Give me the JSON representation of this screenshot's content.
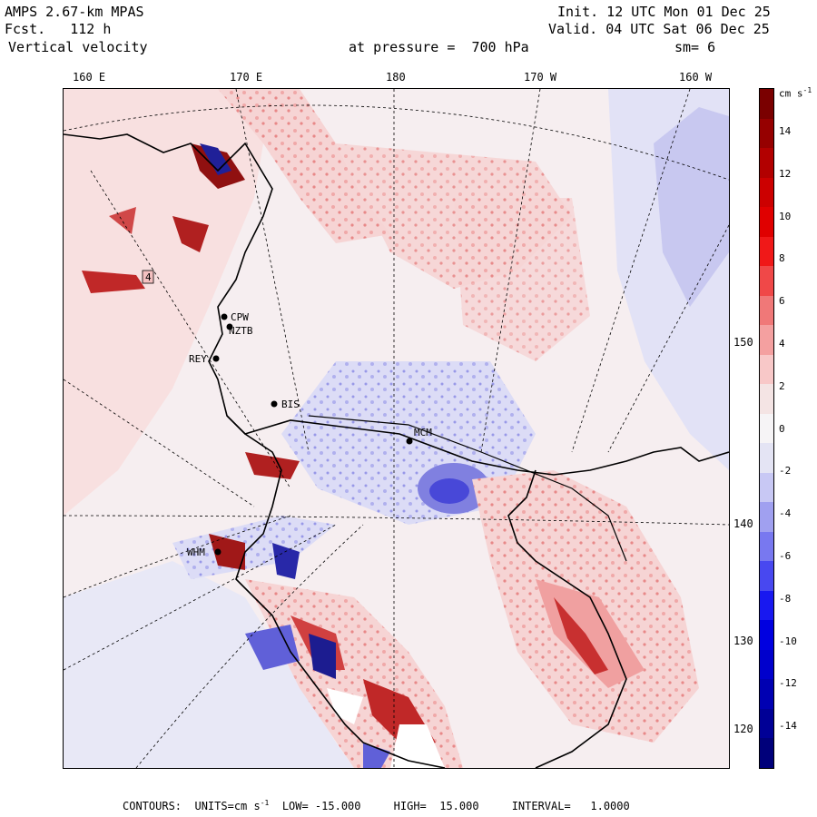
{
  "header": {
    "model": "AMPS 2.67-km MPAS",
    "forecast": "Fcst.   112 h",
    "field": "Vertical velocity",
    "init": "Init. 12 UTC Mon 01 Dec 25",
    "valid": "Valid. 04 UTC Sat 06 Dec 25",
    "pressure": "at pressure =  700 hPa",
    "smoothing": "sm= 6"
  },
  "map": {
    "lon_labels": [
      "160 E",
      "170 E",
      "180",
      "170 W",
      "160 W"
    ],
    "lat_labels": [
      "150 W",
      "140 W",
      "130 W",
      "120 W"
    ],
    "stations": [
      "CPW",
      "NZTB",
      "REY",
      "BIS",
      "MCM",
      "WHM"
    ],
    "marker_value": "4",
    "colors": {
      "positive": "#e8302a",
      "negative": "#3040e0",
      "neutral": "#f6f4f6"
    }
  },
  "colorbar": {
    "units": "cm s",
    "units_exp": "-1",
    "labels": [
      "14",
      "12",
      "10",
      "8",
      "6",
      "4",
      "2",
      "0",
      "-2",
      "-4",
      "-6",
      "-8",
      "-10",
      "-12",
      "-14"
    ],
    "colors": [
      "#7a0000",
      "#960000",
      "#b20000",
      "#cc0000",
      "#e00000",
      "#f01818",
      "#f04848",
      "#f07878",
      "#f4a0a0",
      "#f8c8c8",
      "#f4e4e4",
      "#f6f4f6",
      "#e4e4f4",
      "#c8c8f4",
      "#a0a0f0",
      "#7878f0",
      "#4848f0",
      "#1818f0",
      "#0000e0",
      "#0000cc",
      "#0000b2",
      "#000096",
      "#00007a"
    ]
  },
  "footer": {
    "contours": "CONTOURS:  UNITS=cm s",
    "contours_exp": "-1",
    "low": "LOW= -15.000",
    "high": "HIGH=  15.000",
    "interval": "INTERVAL=   1.0000"
  }
}
